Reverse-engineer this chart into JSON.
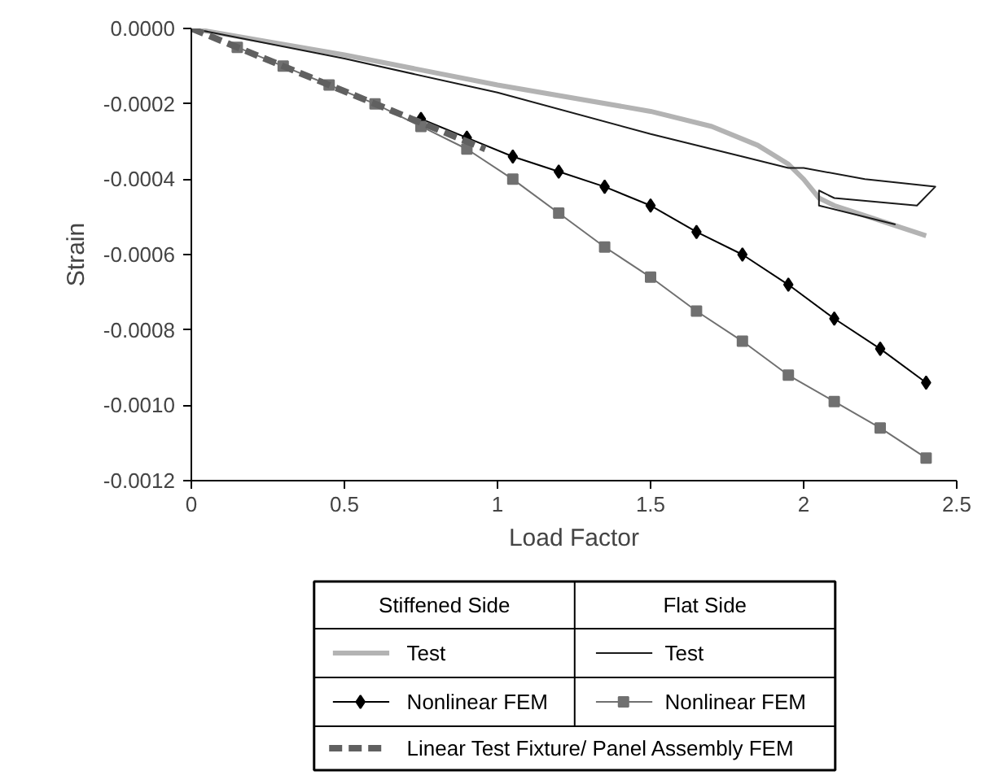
{
  "chart_data": {
    "type": "line",
    "xlabel": "Load Factor",
    "ylabel": "Strain",
    "xlim": [
      0,
      2.5
    ],
    "xticks": [
      0,
      0.5,
      1,
      1.5,
      2,
      2.5
    ],
    "ylim": [
      -0.0012,
      0
    ],
    "yticks": [
      {
        "value": 0,
        "label": "0.0000"
      },
      {
        "value": -0.0002,
        "label": "-0.0002"
      },
      {
        "value": -0.0004,
        "label": "-0.0004"
      },
      {
        "value": -0.0006,
        "label": "-0.0006"
      },
      {
        "value": -0.0008,
        "label": "-0.0008"
      },
      {
        "value": -0.001,
        "label": "-0.0010"
      },
      {
        "value": -0.0012,
        "label": "-0.0012"
      }
    ],
    "grid": false,
    "legend": "bottom",
    "annotations": [
      "Stiffened Side",
      "Flat Side"
    ],
    "series": [
      {
        "name": "Test",
        "color": "#b3b3b3",
        "marker": "none",
        "line_style": "solid",
        "x": [
          0,
          0.5,
          1,
          1.5,
          1.7,
          1.85,
          1.95,
          2.0,
          2.05,
          2.1,
          2.4
        ],
        "values": [
          0,
          -7e-05,
          -0.00015,
          -0.00022,
          -0.00026,
          -0.00031,
          -0.00036,
          -0.0004,
          -0.00045,
          -0.00047,
          -0.00055
        ]
      },
      {
        "name": "Test",
        "color": "#1a1a1a",
        "marker": "none",
        "line_style": "solid",
        "x": [
          0,
          0.5,
          1,
          1.5,
          1.8,
          1.95,
          2.0,
          2.2,
          2.43,
          2.37,
          2.1,
          2.05,
          2.05,
          2.3
        ],
        "values": [
          0,
          -8e-05,
          -0.00017,
          -0.00028,
          -0.00034,
          -0.00037,
          -0.00037,
          -0.0004,
          -0.00042,
          -0.00047,
          -0.00045,
          -0.00043,
          -0.00047,
          -0.00052
        ]
      },
      {
        "name": "Nonlinear FEM",
        "color": "#000000",
        "marker": "diamond",
        "line_style": "solid",
        "x": [
          0.75,
          0.9,
          1.05,
          1.2,
          1.35,
          1.5,
          1.65,
          1.8,
          1.95,
          2.1,
          2.25,
          2.4
        ],
        "values": [
          -0.00024,
          -0.00029,
          -0.00034,
          -0.00038,
          -0.00042,
          -0.00047,
          -0.00054,
          -0.0006,
          -0.00068,
          -0.00077,
          -0.00085,
          -0.00094
        ]
      },
      {
        "name": "Nonlinear FEM",
        "color": "#707070",
        "marker": "square",
        "line_style": "solid",
        "x": [
          0.15,
          0.3,
          0.45,
          0.6,
          0.75,
          0.9,
          1.05,
          1.2,
          1.35,
          1.5,
          1.65,
          1.8,
          1.95,
          2.1,
          2.25,
          2.4
        ],
        "values": [
          -5e-05,
          -0.0001,
          -0.00015,
          -0.0002,
          -0.00026,
          -0.00032,
          -0.0004,
          -0.00049,
          -0.00058,
          -0.00066,
          -0.00075,
          -0.00083,
          -0.00092,
          -0.00099,
          -0.00106,
          -0.00114
        ]
      },
      {
        "name": "Linear Test Fixture/ Panel Assembly FEM",
        "color": "#606060",
        "marker": "none",
        "line_style": "dashed",
        "x": [
          0,
          0.96
        ],
        "values": [
          0,
          -0.00032
        ]
      }
    ]
  }
}
